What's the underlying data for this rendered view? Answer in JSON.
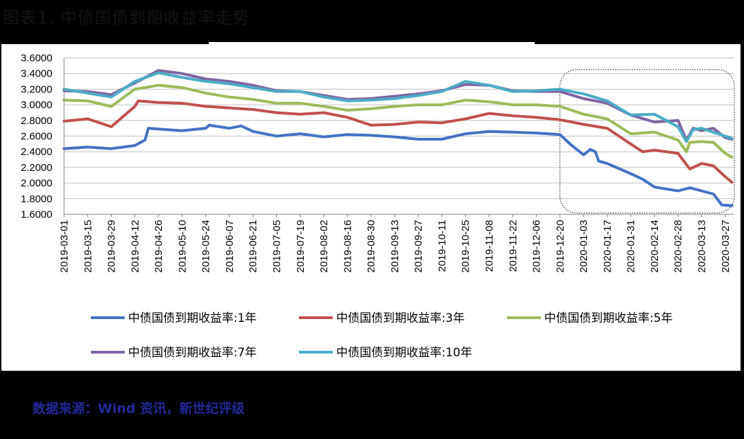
{
  "figure": {
    "title": "图表1. 中债国债到期收益率走势",
    "source": "数据来源：Wind 资讯，新世纪评级"
  },
  "chart_data": {
    "type": "line",
    "title": "",
    "xlabel": "",
    "ylabel": "",
    "ylim": [
      1.6,
      3.6
    ],
    "yticks": [
      "3.6000",
      "3.4000",
      "3.2000",
      "3.0000",
      "2.8000",
      "2.6000",
      "2.4000",
      "2.2000",
      "2.0000",
      "1.8000",
      "1.6000"
    ],
    "xticks": [
      "2019-03-01",
      "2019-03-15",
      "2019-03-29",
      "2019-04-12",
      "2019-04-26",
      "2019-05-10",
      "2019-05-24",
      "2019-06-07",
      "2019-06-21",
      "2019-07-05",
      "2019-07-19",
      "2019-08-02",
      "2019-08-16",
      "2019-08-30",
      "2019-09-13",
      "2019-09-27",
      "2019-10-11",
      "2019-10-25",
      "2019-11-08",
      "2019-11-22",
      "2019-12-06",
      "2019-12-20",
      "2020-01-03",
      "2020-01-17",
      "2020-01-31",
      "2020-02-14",
      "2020-02-28",
      "2020-03-13",
      "2020-03-27"
    ],
    "x_range": [
      "2019-03-01",
      "2020-04-01"
    ],
    "grid": true,
    "legend_position": "bottom",
    "highlight_box": {
      "x": [
        "2019-12-20",
        "2020-04-01"
      ],
      "y": [
        1.6,
        3.45
      ]
    },
    "series": [
      {
        "name": "中债国债到期收益率:1年",
        "color": "#4472c4",
        "x": [
          "2019-03-01",
          "2019-03-15",
          "2019-03-29",
          "2019-04-12",
          "2019-04-18",
          "2019-04-20",
          "2019-04-26",
          "2019-05-10",
          "2019-05-24",
          "2019-05-26",
          "2019-06-07",
          "2019-06-14",
          "2019-06-21",
          "2019-07-05",
          "2019-07-19",
          "2019-08-02",
          "2019-08-16",
          "2019-08-30",
          "2019-09-13",
          "2019-09-27",
          "2019-10-11",
          "2019-10-25",
          "2019-11-08",
          "2019-11-22",
          "2019-12-06",
          "2019-12-20",
          "2019-12-26",
          "2020-01-03",
          "2020-01-07",
          "2020-01-10",
          "2020-01-12",
          "2020-01-17",
          "2020-01-31",
          "2020-02-07",
          "2020-02-14",
          "2020-02-28",
          "2020-03-06",
          "2020-03-13",
          "2020-03-20",
          "2020-03-25",
          "2020-03-31"
        ],
        "values": [
          2.44,
          2.46,
          2.44,
          2.48,
          2.55,
          2.7,
          2.69,
          2.67,
          2.7,
          2.74,
          2.7,
          2.73,
          2.66,
          2.6,
          2.63,
          2.59,
          2.62,
          2.61,
          2.59,
          2.56,
          2.56,
          2.63,
          2.66,
          2.65,
          2.64,
          2.62,
          2.5,
          2.36,
          2.43,
          2.4,
          2.28,
          2.25,
          2.12,
          2.05,
          1.95,
          1.9,
          1.94,
          1.9,
          1.86,
          1.72,
          1.71
        ]
      },
      {
        "name": "中债国债到期收益率:3年",
        "color": "#c0504d",
        "x": [
          "2019-03-01",
          "2019-03-15",
          "2019-03-29",
          "2019-04-05",
          "2019-04-12",
          "2019-04-14",
          "2019-04-26",
          "2019-05-10",
          "2019-05-24",
          "2019-06-07",
          "2019-06-21",
          "2019-07-05",
          "2019-07-19",
          "2019-08-02",
          "2019-08-16",
          "2019-08-30",
          "2019-09-13",
          "2019-09-27",
          "2019-10-11",
          "2019-10-25",
          "2019-11-08",
          "2019-11-22",
          "2019-12-06",
          "2019-12-20",
          "2020-01-03",
          "2020-01-17",
          "2020-01-31",
          "2020-02-07",
          "2020-02-14",
          "2020-02-28",
          "2020-03-06",
          "2020-03-13",
          "2020-03-20",
          "2020-03-27",
          "2020-03-31"
        ],
        "values": [
          2.79,
          2.82,
          2.72,
          2.85,
          2.98,
          3.05,
          3.03,
          3.02,
          2.98,
          2.96,
          2.94,
          2.9,
          2.88,
          2.9,
          2.84,
          2.74,
          2.75,
          2.78,
          2.77,
          2.82,
          2.89,
          2.86,
          2.84,
          2.81,
          2.75,
          2.7,
          2.5,
          2.4,
          2.42,
          2.38,
          2.18,
          2.25,
          2.22,
          2.08,
          2.01
        ]
      },
      {
        "name": "中债国债到期收益率:5年",
        "color": "#9bbb59",
        "x": [
          "2019-03-01",
          "2019-03-15",
          "2019-03-29",
          "2019-04-12",
          "2019-04-26",
          "2019-05-10",
          "2019-05-24",
          "2019-06-07",
          "2019-06-21",
          "2019-07-05",
          "2019-07-19",
          "2019-08-02",
          "2019-08-16",
          "2019-08-30",
          "2019-09-13",
          "2019-09-27",
          "2019-10-11",
          "2019-10-25",
          "2019-11-08",
          "2019-11-22",
          "2019-12-06",
          "2019-12-20",
          "2020-01-03",
          "2020-01-17",
          "2020-01-31",
          "2020-02-14",
          "2020-02-28",
          "2020-03-04",
          "2020-03-06",
          "2020-03-13",
          "2020-03-20",
          "2020-03-27",
          "2020-03-31"
        ],
        "values": [
          3.06,
          3.05,
          2.98,
          3.2,
          3.25,
          3.22,
          3.15,
          3.1,
          3.07,
          3.02,
          3.02,
          2.98,
          2.93,
          2.95,
          2.98,
          3.0,
          3.0,
          3.06,
          3.04,
          3.0,
          3.0,
          2.98,
          2.88,
          2.82,
          2.63,
          2.65,
          2.55,
          2.4,
          2.52,
          2.53,
          2.52,
          2.38,
          2.33
        ]
      },
      {
        "name": "中债国债到期收益率:7年",
        "color": "#8064a2",
        "x": [
          "2019-03-01",
          "2019-03-15",
          "2019-03-29",
          "2019-04-12",
          "2019-04-26",
          "2019-05-10",
          "2019-05-24",
          "2019-06-07",
          "2019-06-21",
          "2019-07-05",
          "2019-07-19",
          "2019-08-02",
          "2019-08-16",
          "2019-08-30",
          "2019-09-13",
          "2019-09-27",
          "2019-10-11",
          "2019-10-25",
          "2019-11-08",
          "2019-11-22",
          "2019-12-06",
          "2019-12-20",
          "2020-01-03",
          "2020-01-17",
          "2020-01-31",
          "2020-02-14",
          "2020-02-28",
          "2020-03-04",
          "2020-03-08",
          "2020-03-13",
          "2020-03-20",
          "2020-03-27",
          "2020-03-31"
        ],
        "values": [
          3.18,
          3.17,
          3.13,
          3.28,
          3.44,
          3.4,
          3.33,
          3.3,
          3.25,
          3.18,
          3.17,
          3.12,
          3.07,
          3.08,
          3.11,
          3.14,
          3.18,
          3.26,
          3.25,
          3.18,
          3.17,
          3.17,
          3.08,
          3.02,
          2.87,
          2.78,
          2.8,
          2.55,
          2.7,
          2.67,
          2.7,
          2.58,
          2.56
        ]
      },
      {
        "name": "中债国债到期收益率:10年",
        "color": "#4bacc6",
        "x": [
          "2019-03-01",
          "2019-03-15",
          "2019-03-29",
          "2019-04-12",
          "2019-04-26",
          "2019-05-10",
          "2019-05-24",
          "2019-06-07",
          "2019-06-21",
          "2019-07-05",
          "2019-07-19",
          "2019-08-02",
          "2019-08-16",
          "2019-08-30",
          "2019-09-13",
          "2019-09-27",
          "2019-10-11",
          "2019-10-25",
          "2019-11-08",
          "2019-11-22",
          "2019-12-06",
          "2019-12-20",
          "2020-01-03",
          "2020-01-17",
          "2020-01-31",
          "2020-02-14",
          "2020-02-21",
          "2020-02-28",
          "2020-03-04",
          "2020-03-08",
          "2020-03-13",
          "2020-03-20",
          "2020-03-27",
          "2020-03-31"
        ],
        "values": [
          3.2,
          3.15,
          3.1,
          3.3,
          3.41,
          3.35,
          3.3,
          3.27,
          3.22,
          3.17,
          3.17,
          3.1,
          3.05,
          3.06,
          3.08,
          3.12,
          3.17,
          3.3,
          3.25,
          3.17,
          3.18,
          3.2,
          3.14,
          3.05,
          2.87,
          2.88,
          2.8,
          2.72,
          2.53,
          2.68,
          2.7,
          2.65,
          2.6,
          2.57
        ]
      }
    ]
  }
}
